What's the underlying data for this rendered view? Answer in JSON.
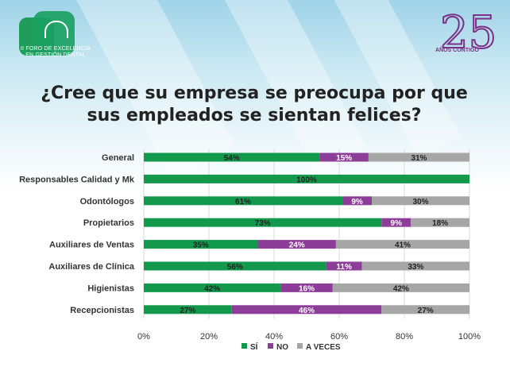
{
  "logos": {
    "left_text_line1": "II FORO DE EXCELENCIA",
    "left_text_line2": "EN GESTIÓN DENTAL",
    "right_number": "25",
    "right_text": "AÑOS CONTIGO"
  },
  "title": {
    "line1": "¿Cree que su empresa se preocupa por que",
    "line2": "sus empleados se sientan felices?"
  },
  "chart_data": {
    "type": "bar",
    "orientation": "horizontal",
    "stacked": true,
    "categories": [
      "General",
      "Responsables Calidad y Mk",
      "Odontólogos",
      "Propietarios",
      "Auxiliares de Ventas",
      "Auxiliares de Clínica",
      "Higienistas",
      "Recepcionistas"
    ],
    "series": [
      {
        "name": "SÍ",
        "color": "#13994c",
        "values": [
          54,
          100,
          61,
          73,
          35,
          56,
          42,
          27
        ]
      },
      {
        "name": "NO",
        "color": "#8c3d97",
        "values": [
          15,
          0,
          9,
          9,
          24,
          11,
          16,
          46
        ]
      },
      {
        "name": "A VECES",
        "color": "#a6a6a6",
        "values": [
          31,
          0,
          30,
          18,
          41,
          33,
          42,
          27
        ]
      }
    ],
    "xlim": [
      0,
      100
    ],
    "xticks": [
      "0%",
      "20%",
      "40%",
      "60%",
      "80%",
      "100%"
    ],
    "legend_position": "bottom",
    "grid": true
  }
}
